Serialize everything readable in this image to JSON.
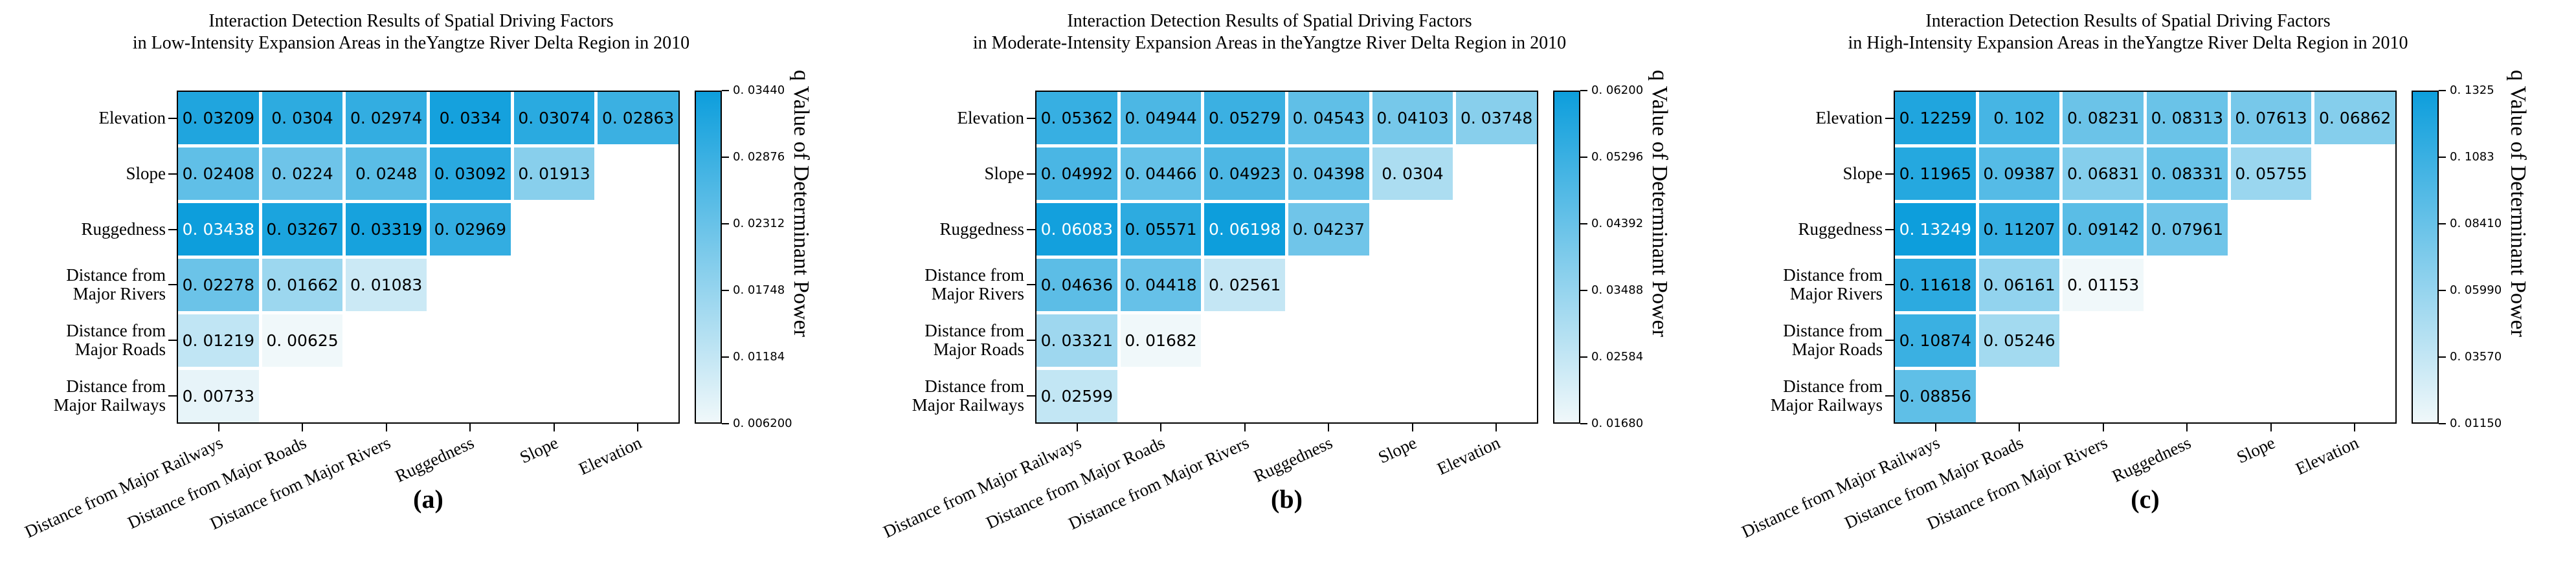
{
  "colors": {
    "cmap_low": "#f0f8fa",
    "cmap_high": "#0d9edc",
    "cell_text_dark": "#000000",
    "cell_text_light": "#ffffff",
    "frame": "#000000"
  },
  "chart_data": [
    {
      "type": "heatmap",
      "caption": "(a)",
      "title": [
        "Interaction Detection Results of Spatial Driving Factors",
        "in Low-Intensity Expansion Areas in theYangtze River Delta Region in 2010"
      ],
      "row_labels": [
        "Elevation",
        "Slope",
        "Ruggedness",
        "Distance from\nMajor Rivers",
        "Distance from\nMajor Roads",
        "Distance from\nMajor Railways"
      ],
      "col_labels": [
        "Distance from Major Railways",
        "Distance from Major Roads",
        "Distance from Major Rivers",
        "Ruggedness",
        "Slope",
        "Elevation"
      ],
      "values": [
        [
          0.03209,
          0.0304,
          0.02974,
          0.0334,
          0.03074,
          0.02863
        ],
        [
          0.02408,
          0.0224,
          0.0248,
          0.03092,
          0.01913
        ],
        [
          0.03438,
          0.03267,
          0.03319,
          0.02969
        ],
        [
          0.02278,
          0.01662,
          0.01083
        ],
        [
          0.01219,
          0.00625
        ],
        [
          0.00733
        ]
      ],
      "vmin": 0.0062,
      "vmax": 0.0344,
      "colorbar_ticks": [
        0.0344,
        0.02876,
        0.02312,
        0.01748,
        0.01184,
        0.0062
      ],
      "colorbar_tick_labels": [
        "0. 03440",
        "0. 02876",
        "0. 02312",
        "0. 01748",
        "0. 01184",
        "0. 006200"
      ],
      "colorbar_label": "q Value of Determinant Power"
    },
    {
      "type": "heatmap",
      "caption": "(b)",
      "title": [
        "Interaction Detection Results of Spatial Driving Factors",
        "in Moderate-Intensity Expansion Areas in theYangtze River Delta Region in 2010"
      ],
      "row_labels": [
        "Elevation",
        "Slope",
        "Ruggedness",
        "Distance from\nMajor Rivers",
        "Distance from\nMajor Roads",
        "Distance from\nMajor Railways"
      ],
      "col_labels": [
        "Distance from Major Railways",
        "Distance from Major Roads",
        "Distance from Major Rivers",
        "Ruggedness",
        "Slope",
        "Elevation"
      ],
      "values": [
        [
          0.05362,
          0.04944,
          0.05279,
          0.04543,
          0.04103,
          0.03748
        ],
        [
          0.04992,
          0.04466,
          0.04923,
          0.04398,
          0.0304
        ],
        [
          0.06083,
          0.05571,
          0.06198,
          0.04237
        ],
        [
          0.04636,
          0.04418,
          0.02561
        ],
        [
          0.03321,
          0.01682
        ],
        [
          0.02599
        ]
      ],
      "vmin": 0.0168,
      "vmax": 0.062,
      "colorbar_ticks": [
        0.062,
        0.05296,
        0.04392,
        0.03488,
        0.02584,
        0.0168
      ],
      "colorbar_tick_labels": [
        "0. 06200",
        "0. 05296",
        "0. 04392",
        "0. 03488",
        "0. 02584",
        "0. 01680"
      ],
      "colorbar_label": "q Value of Determinant Power"
    },
    {
      "type": "heatmap",
      "caption": "(c)",
      "title": [
        "Interaction Detection Results of Spatial Driving Factors",
        "in High-Intensity Expansion Areas in theYangtze River Delta Region in 2010"
      ],
      "row_labels": [
        "Elevation",
        "Slope",
        "Ruggedness",
        "Distance from\nMajor Rivers",
        "Distance from\nMajor Roads",
        "Distance from\nMajor Railways"
      ],
      "col_labels": [
        "Distance from Major Railways",
        "Distance from Major Roads",
        "Distance from Major Rivers",
        "Ruggedness",
        "Slope",
        "Elevation"
      ],
      "values": [
        [
          0.12259,
          0.102,
          0.08231,
          0.08313,
          0.07613,
          0.06862
        ],
        [
          0.11965,
          0.09387,
          0.06831,
          0.08331,
          0.05755
        ],
        [
          0.13249,
          0.11207,
          0.09142,
          0.07961
        ],
        [
          0.11618,
          0.06161,
          0.01153
        ],
        [
          0.10874,
          0.05246
        ],
        [
          0.08856
        ]
      ],
      "vmin": 0.0115,
      "vmax": 0.1325,
      "colorbar_ticks": [
        0.1325,
        0.1083,
        0.0841,
        0.0599,
        0.0357,
        0.0115
      ],
      "colorbar_tick_labels": [
        "0. 1325",
        "0. 1083",
        "0. 08410",
        "0. 05990",
        "0. 03570",
        "0. 01150"
      ],
      "colorbar_label": "q Value of Determinant Power"
    }
  ]
}
